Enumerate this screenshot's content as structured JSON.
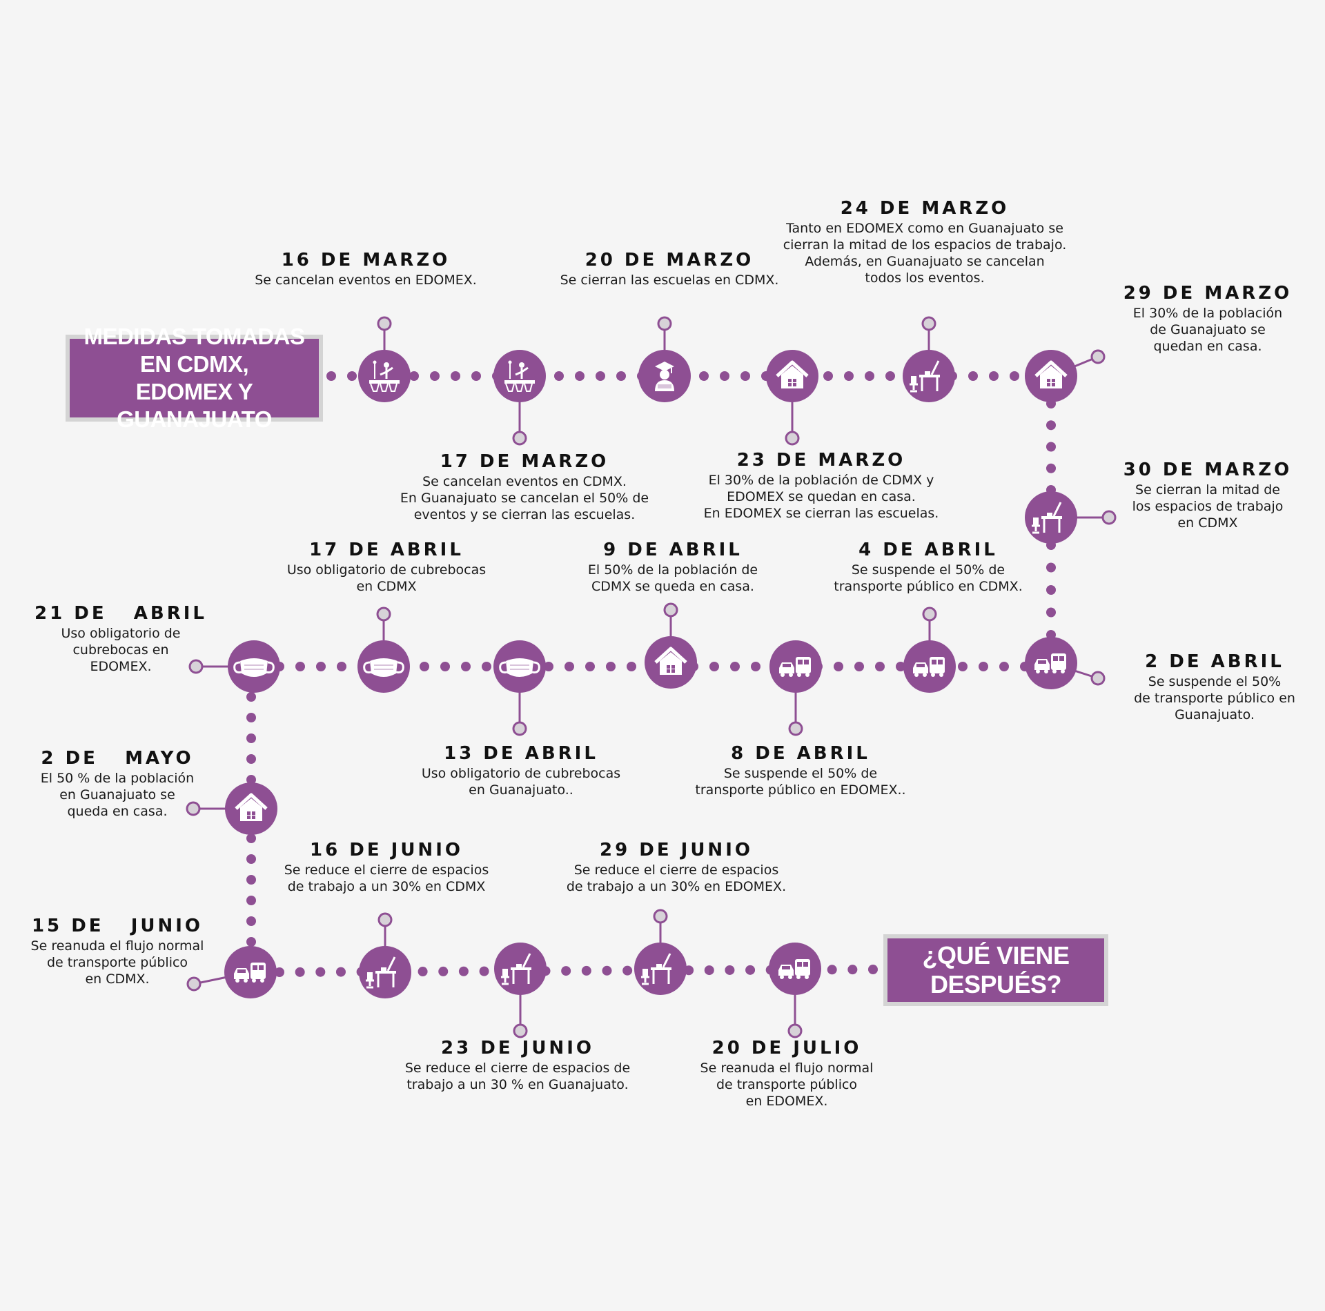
{
  "title": {
    "line1": "MEDIDAS TOMADAS EN CDMX,",
    "line2": "EDOMEX Y GUANAJUATO"
  },
  "end_label": "¿QUÉ VIENE DESPUÉS?",
  "colors": {
    "accent": "#8e4f93",
    "pin": "#d7d2d8",
    "box_border": "#d4d4d4",
    "background": "#f5f5f5"
  },
  "events": [
    {
      "date": "16 DE MARZO",
      "desc": "Se cancelan eventos en EDOMEX.",
      "icon": "stage-event-icon"
    },
    {
      "date": "17 DE MARZO",
      "desc": "Se cancelan eventos en CDMX.\nEn Guanajuato se cancelan el 50% de\neventos  y se cierran las escuelas.",
      "icon": "stage-event-icon"
    },
    {
      "date": "20 DE MARZO",
      "desc": "Se cierran las escuelas en CDMX.",
      "icon": "graduate-icon"
    },
    {
      "date": "23 DE MARZO",
      "desc": "El 30% de la población de CDMX y\nEDOMEX se quedan en casa.\nEn EDOMEX se cierran las escuelas.",
      "icon": "home-icon"
    },
    {
      "date": "24 DE MARZO",
      "desc": "Tanto en EDOMEX como en Guanajuato se\ncierran la mitad de los espacios de trabajo.\nAdemás, en Guanajuato se cancelan\ntodos los eventos.",
      "icon": "workspace-icon"
    },
    {
      "date": "29 DE MARZO",
      "desc": "El 30% de la población\nde Guanajuato se\nquedan en casa.",
      "icon": "home-icon"
    },
    {
      "date": "30 DE MARZO",
      "desc": "Se cierran la mitad de\nlos espacios de trabajo\nen CDMX",
      "icon": "workspace-icon"
    },
    {
      "date": "2 DE ABRIL",
      "desc": "Se suspende el 50%\nde transporte público en\nGuanajuato.",
      "icon": "transport-icon"
    },
    {
      "date": "4 DE ABRIL",
      "desc": "Se suspende el 50% de\ntransporte público en CDMX.",
      "icon": "transport-icon"
    },
    {
      "date": "8 DE ABRIL",
      "desc": "Se suspende el 50% de\ntransporte público en EDOMEX..",
      "icon": "transport-icon"
    },
    {
      "date": "9 DE ABRIL",
      "desc": "El 50% de la población de\nCDMX se queda en casa.",
      "icon": "home-icon"
    },
    {
      "date": "13 DE ABRIL",
      "desc": "Uso obligatorio de cubrebocas\nen Guanajuato..",
      "icon": "face-mask-icon"
    },
    {
      "date": "17 DE ABRIL",
      "desc": "Uso obligatorio de cubrebocas\nen CDMX",
      "icon": "face-mask-icon"
    },
    {
      "date": "21 DE   ABRIL",
      "desc": "Uso obligatorio de\ncubrebocas en\nEDOMEX.",
      "icon": "face-mask-icon"
    },
    {
      "date": "2 DE   MAYO",
      "desc": "El 50 % de la población\nen Guanajuato se\nqueda en casa.",
      "icon": "home-icon"
    },
    {
      "date": "15 DE   JUNIO",
      "desc": "Se reanuda el flujo normal\nde transporte público\nen CDMX.",
      "icon": "transport-icon"
    },
    {
      "date": "16 DE JUNIO",
      "desc": "Se reduce el cierre de espacios\nde trabajo a un 30% en CDMX",
      "icon": "workspace-icon"
    },
    {
      "date": "23 DE JUNIO",
      "desc": "Se reduce el cierre de espacios de\ntrabajo a un 30 % en Guanajuato.",
      "icon": "workspace-icon"
    },
    {
      "date": "29 DE JUNIO",
      "desc": "Se reduce el cierre de espacios\nde trabajo a un 30% en EDOMEX.",
      "icon": "workspace-icon"
    },
    {
      "date": "20 DE JULIO",
      "desc": "Se reanuda el flujo normal\nde transporte público\nen EDOMEX.",
      "icon": "transport-icon"
    }
  ]
}
